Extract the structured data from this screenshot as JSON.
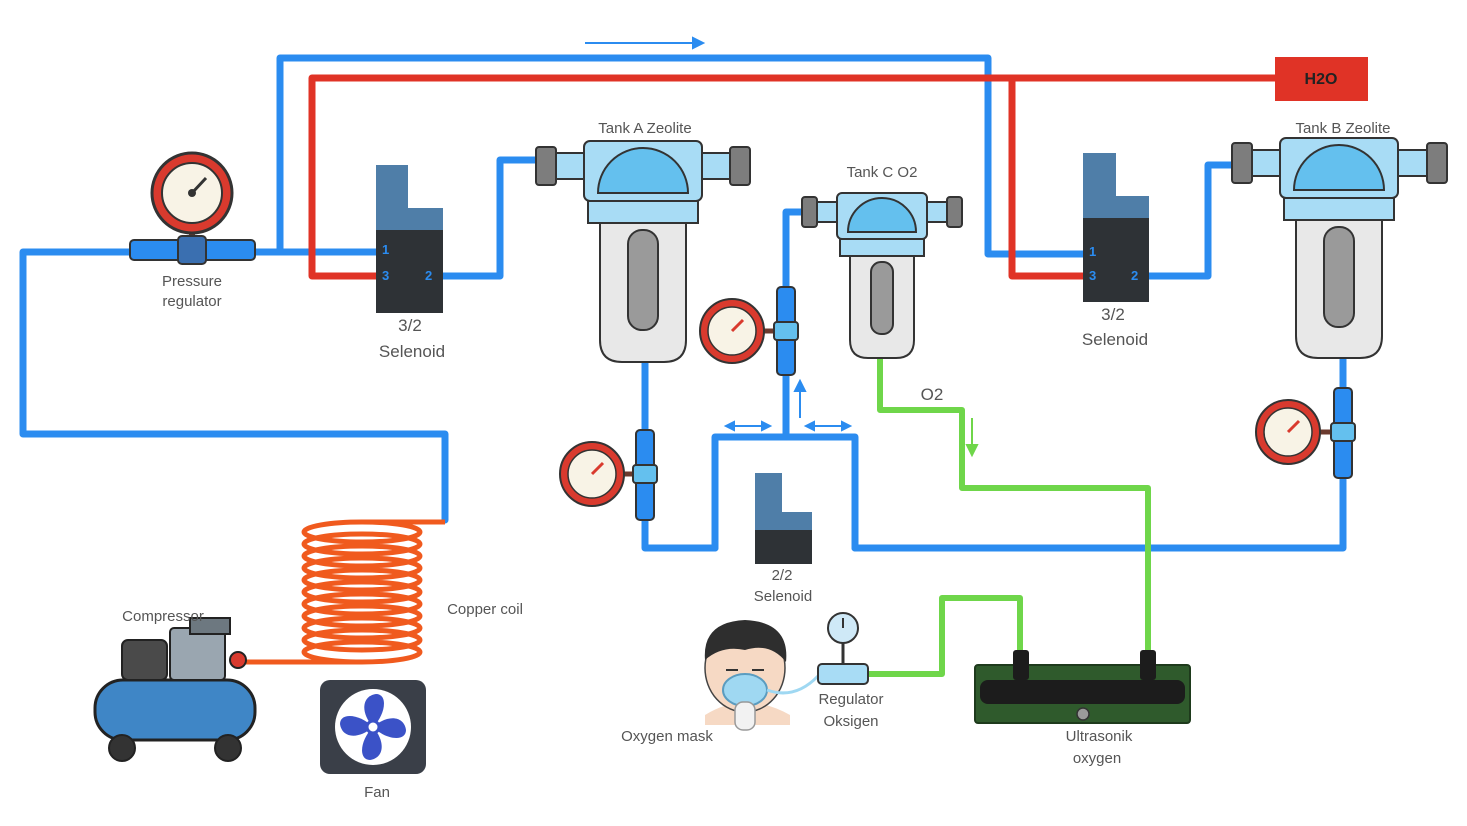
{
  "labels": {
    "h2o": "H2O",
    "tank_a": "Tank A Zeolite",
    "tank_b": "Tank B Zeolite",
    "tank_c": "Tank C O2",
    "pressure_regulator_1": "Pressure",
    "pressure_regulator_2": "regulator",
    "solenoid_a_1": "3/2",
    "solenoid_a_2": "Selenoid",
    "solenoid_b_1": "3/2",
    "solenoid_b_2": "Selenoid",
    "solenoid_c_1": "2/2",
    "solenoid_c_2": "Selenoid",
    "o2": "O2",
    "compressor": "Compressor",
    "copper_coil": "Copper coil",
    "fan": "Fan",
    "oxygen_mask": "Oxygen mask",
    "regulator_oksigen_1": "Regulator",
    "regulator_oksigen_2": "Oksigen",
    "ultrasonik_1": "Ultrasonik",
    "ultrasonik_2": "oxygen"
  },
  "ports": {
    "p1": "1",
    "p2": "2",
    "p3": "3"
  },
  "colors": {
    "air_line": "#2b8cf0",
    "water_line": "#e03326",
    "oxygen_line": "#6fd64a",
    "copper": "#f05a1e",
    "tank_blue": "#a8dcf5",
    "solenoid_top": "#4f7ea8",
    "solenoid_body": "#2e3236",
    "gauge_red": "#d93a2e"
  }
}
